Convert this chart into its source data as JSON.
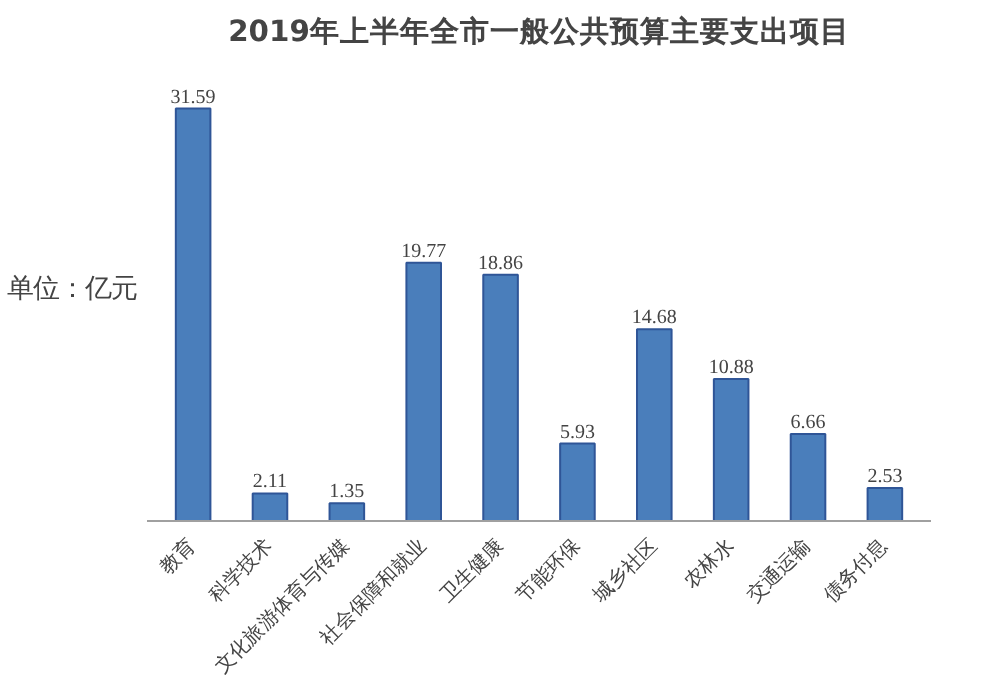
{
  "chart_data": {
    "type": "bar",
    "title": "2019年上半年全市一般公共预算主要支出项目",
    "ylabel": "单位：亿元",
    "categories": [
      "教育",
      "科学技术",
      "文化旅游体育与传媒",
      "社会保障和就业",
      "卫生健康",
      "节能环保",
      "城乡社区",
      "农林水",
      "交通运输",
      "债务付息"
    ],
    "values": [
      31.59,
      2.11,
      1.35,
      19.77,
      18.86,
      5.93,
      14.68,
      10.88,
      6.66,
      2.53
    ],
    "color": "#4a7ebb",
    "data_labels": true
  }
}
